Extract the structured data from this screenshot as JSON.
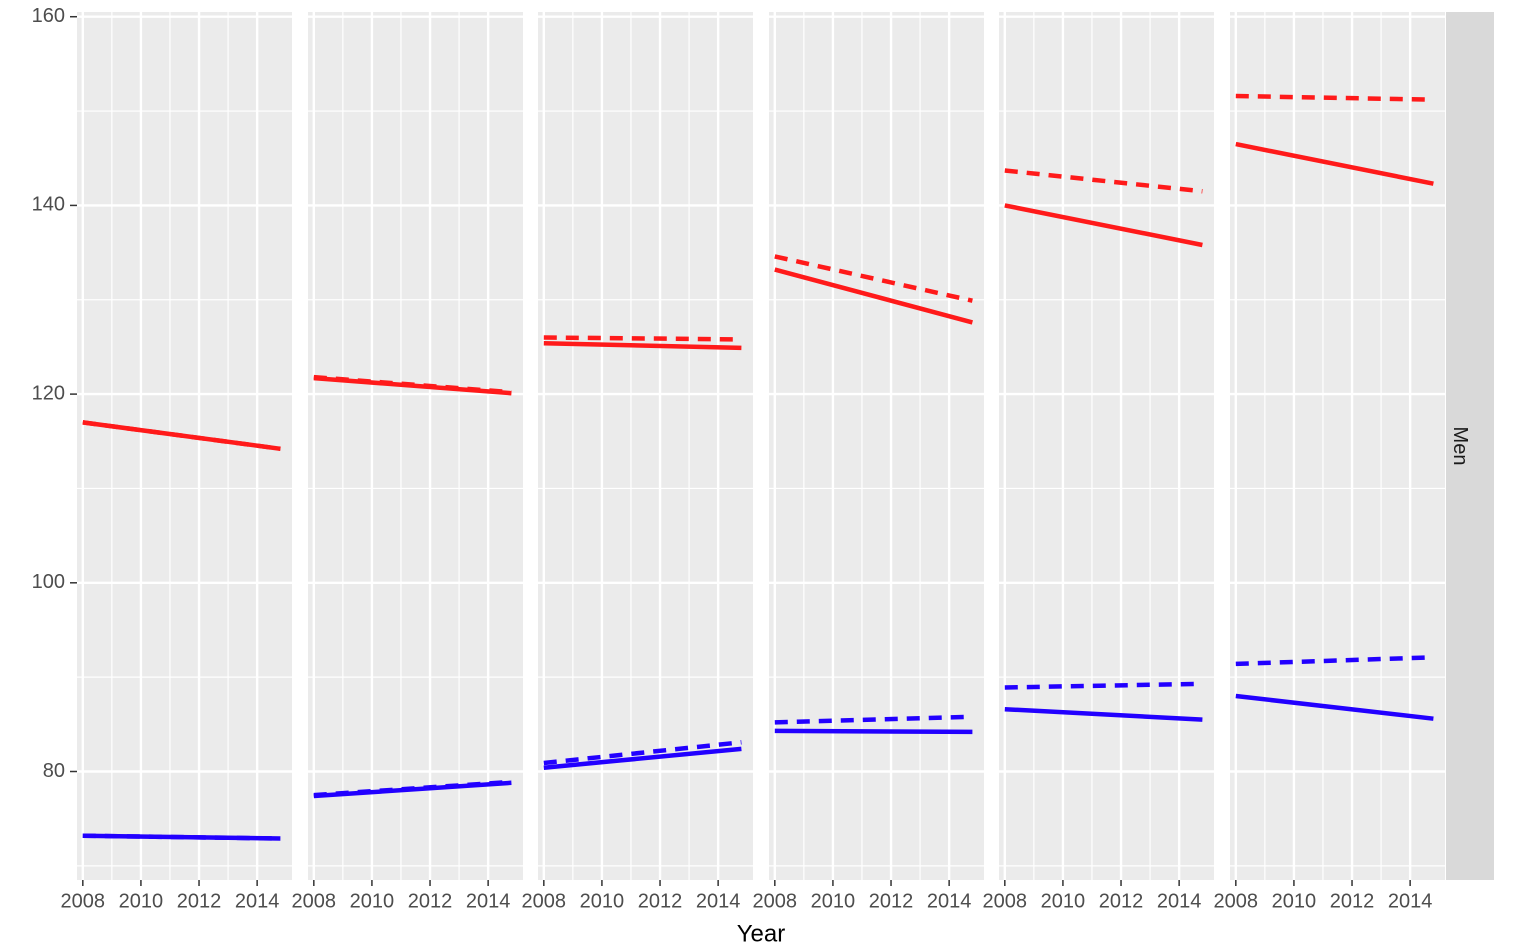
{
  "chart_data": {
    "type": "line",
    "layout": "faceted",
    "xlabel": "Year",
    "ylabel": "",
    "strip_label": "Men",
    "xlim": [
      2007.8,
      2015.2
    ],
    "ylim": [
      68.5,
      160.5
    ],
    "x_ticks": [
      2008,
      2010,
      2012,
      2014
    ],
    "y_ticks": [
      80,
      100,
      120,
      140,
      160
    ],
    "colors": {
      "red": "#ff1a1a",
      "blue": "#2200ff",
      "panel": "#ebebeb",
      "grid": "#ffffff",
      "strip": "#d9d9d9"
    },
    "panels": [
      {
        "series": [
          {
            "color": "red",
            "linetype": "solid",
            "x": [
              2008,
              2014.8
            ],
            "y": [
              117.0,
              114.2
            ]
          },
          {
            "color": "red",
            "linetype": "dashed",
            "x": [
              2008,
              2014.8
            ],
            "y": [
              117.0,
              114.2
            ]
          },
          {
            "color": "blue",
            "linetype": "solid",
            "x": [
              2008,
              2014.8
            ],
            "y": [
              73.2,
              72.9
            ]
          },
          {
            "color": "blue",
            "linetype": "dashed",
            "x": [
              2008,
              2014.8
            ],
            "y": [
              73.2,
              72.9
            ]
          }
        ]
      },
      {
        "series": [
          {
            "color": "red",
            "linetype": "solid",
            "x": [
              2008,
              2014.8
            ],
            "y": [
              121.7,
              120.1
            ]
          },
          {
            "color": "red",
            "linetype": "dashed",
            "x": [
              2008,
              2014.8
            ],
            "y": [
              121.8,
              120.2
            ]
          },
          {
            "color": "blue",
            "linetype": "solid",
            "x": [
              2008,
              2014.8
            ],
            "y": [
              77.4,
              78.8
            ]
          },
          {
            "color": "blue",
            "linetype": "dashed",
            "x": [
              2008,
              2014.8
            ],
            "y": [
              77.5,
              78.9
            ]
          }
        ]
      },
      {
        "series": [
          {
            "color": "red",
            "linetype": "solid",
            "x": [
              2008,
              2014.8
            ],
            "y": [
              125.4,
              124.9
            ]
          },
          {
            "color": "red",
            "linetype": "dashed",
            "x": [
              2008,
              2014.8
            ],
            "y": [
              126.0,
              125.8
            ]
          },
          {
            "color": "blue",
            "linetype": "solid",
            "x": [
              2008,
              2014.8
            ],
            "y": [
              80.4,
              82.4
            ]
          },
          {
            "color": "blue",
            "linetype": "dashed",
            "x": [
              2008,
              2014.8
            ],
            "y": [
              80.9,
              83.1
            ]
          }
        ]
      },
      {
        "series": [
          {
            "color": "red",
            "linetype": "solid",
            "x": [
              2008,
              2014.8
            ],
            "y": [
              133.2,
              127.6
            ]
          },
          {
            "color": "red",
            "linetype": "dashed",
            "x": [
              2008,
              2014.8
            ],
            "y": [
              134.6,
              129.9
            ]
          },
          {
            "color": "blue",
            "linetype": "solid",
            "x": [
              2008,
              2014.8
            ],
            "y": [
              84.3,
              84.2
            ]
          },
          {
            "color": "blue",
            "linetype": "dashed",
            "x": [
              2008,
              2014.8
            ],
            "y": [
              85.2,
              85.8
            ]
          }
        ]
      },
      {
        "series": [
          {
            "color": "red",
            "linetype": "solid",
            "x": [
              2008,
              2014.8
            ],
            "y": [
              140.0,
              135.8
            ]
          },
          {
            "color": "red",
            "linetype": "dashed",
            "x": [
              2008,
              2014.8
            ],
            "y": [
              143.7,
              141.5
            ]
          },
          {
            "color": "blue",
            "linetype": "solid",
            "x": [
              2008,
              2014.8
            ],
            "y": [
              86.6,
              85.5
            ]
          },
          {
            "color": "blue",
            "linetype": "dashed",
            "x": [
              2008,
              2014.8
            ],
            "y": [
              88.9,
              89.3
            ]
          }
        ]
      },
      {
        "series": [
          {
            "color": "red",
            "linetype": "solid",
            "x": [
              2008,
              2014.8
            ],
            "y": [
              146.5,
              142.3
            ]
          },
          {
            "color": "red",
            "linetype": "dashed",
            "x": [
              2008,
              2014.8
            ],
            "y": [
              151.6,
              151.2
            ]
          },
          {
            "color": "blue",
            "linetype": "solid",
            "x": [
              2008,
              2014.8
            ],
            "y": [
              88.0,
              85.6
            ]
          },
          {
            "color": "blue",
            "linetype": "dashed",
            "x": [
              2008,
              2014.8
            ],
            "y": [
              91.4,
              92.1
            ]
          }
        ]
      }
    ]
  }
}
